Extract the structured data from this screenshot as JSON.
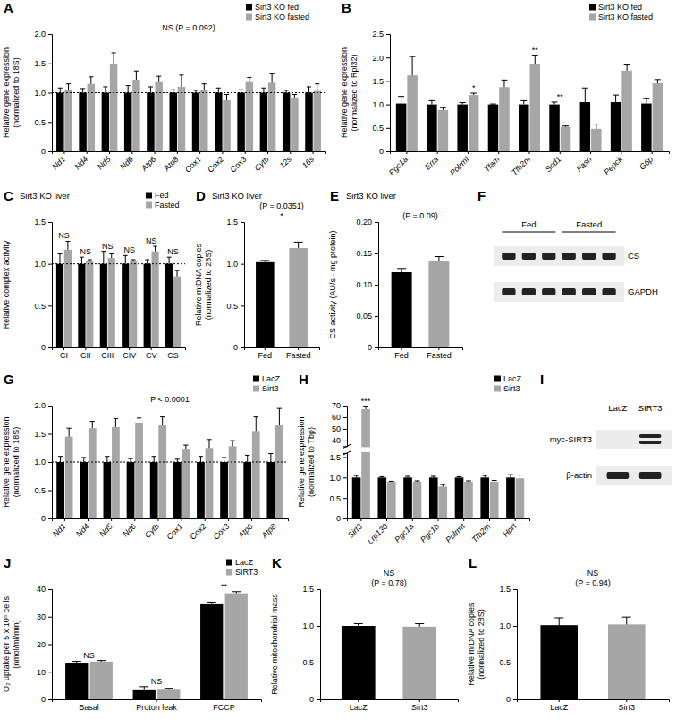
{
  "chart_data": [
    {
      "panel": "A",
      "type": "bar",
      "categories": [
        "Nd1",
        "Nd4",
        "Nd5",
        "Nd6",
        "Atp6",
        "Atp8",
        "Cox1",
        "Cox2",
        "Cox3",
        "Cytb",
        "12s",
        "16s"
      ],
      "series": [
        {
          "name": "Sirt3 KO fed",
          "color": "#000000",
          "values": [
            1,
            1,
            1,
            1,
            1,
            1,
            1,
            1,
            1,
            1,
            1,
            1
          ],
          "errors": [
            0.08,
            0.07,
            0.1,
            0.12,
            0.1,
            0.05,
            0.04,
            0.08,
            0.05,
            0.08,
            0.04,
            0.1
          ]
        },
        {
          "name": "Sirt3 KO fasted",
          "color": "#a6a6a6",
          "values": [
            1.05,
            1.15,
            1.48,
            1.22,
            1.18,
            1.1,
            1.05,
            0.87,
            1.18,
            1.17,
            0.92,
            1.03
          ],
          "errors": [
            0.1,
            0.12,
            0.2,
            0.15,
            0.1,
            0.2,
            0.1,
            0.1,
            0.08,
            0.15,
            0.05,
            0.12
          ]
        }
      ],
      "ylim": [
        0,
        2
      ],
      "yticks": [
        0,
        0.5,
        {
          "value": 1,
          "label": "1.0"
        },
        1.5,
        {
          "value": 2,
          "label": "2.0"
        }
      ],
      "ylabel": [
        "Relative gene expression",
        "(normalized to 18S)"
      ],
      "hline": 1,
      "legend": "top-right",
      "annotations": [
        {
          "text": "NS (P = 0.092)"
        }
      ]
    },
    {
      "panel": "B",
      "type": "bar",
      "categories": [
        "Pgc1a",
        "Erra",
        "Polrmt",
        "Tfam",
        "Tfb2m",
        "Scd1",
        "Fasn",
        "Pepck",
        "G6p"
      ],
      "series": [
        {
          "name": "Sirt3 KO fed",
          "color": "#000000",
          "values": [
            1.02,
            1.0,
            1.0,
            1.0,
            1.0,
            1.0,
            1.05,
            1.05,
            1.02
          ],
          "errors": [
            0.15,
            0.08,
            0.04,
            0.01,
            0.08,
            0.05,
            0.3,
            0.15,
            0.1
          ]
        },
        {
          "name": "Sirt3 KO fasted",
          "color": "#a6a6a6",
          "values": [
            1.62,
            0.88,
            1.2,
            1.37,
            1.85,
            0.52,
            0.48,
            1.72,
            1.45
          ],
          "errors": [
            0.4,
            0.05,
            0.04,
            0.15,
            0.2,
            0.02,
            0.1,
            0.12,
            0.08
          ]
        }
      ],
      "ylim": [
        0,
        2.5
      ],
      "yticks": [
        0,
        0.5,
        {
          "value": 1,
          "label": "1.0"
        },
        1.5,
        {
          "value": 2,
          "label": "2.0"
        },
        2.5
      ],
      "ylabel": [
        "Relative gene expression",
        "(normalized to Rpl32)"
      ],
      "legend": "top-right",
      "annotations": [
        {
          "text": "*",
          "category": 2,
          "series": 1
        },
        {
          "text": "**",
          "category": 4,
          "series": 1
        },
        {
          "text": "**",
          "category": 5
        }
      ]
    },
    {
      "panel": "C",
      "type": "bar",
      "title": "Sirt3 KO liver",
      "categories": [
        "CI",
        "CII",
        "CIII",
        "CIV",
        "CV",
        "CS"
      ],
      "series": [
        {
          "name": "Fed",
          "color": "#000000",
          "values": [
            1,
            1,
            1,
            1,
            1,
            1
          ],
          "errors": [
            0.12,
            0.08,
            0.15,
            0.1,
            0.05,
            0.08
          ]
        },
        {
          "name": "Fasted",
          "color": "#a6a6a6",
          "values": [
            1.17,
            1.03,
            1.07,
            1.03,
            1.15,
            0.85
          ],
          "errors": [
            0.1,
            0.02,
            0.05,
            0.02,
            0.06,
            0.07
          ]
        }
      ],
      "ylim": [
        0,
        1.5
      ],
      "yticks": [
        0,
        0.5,
        {
          "value": 1,
          "label": "1.0"
        },
        1.5
      ],
      "ylabel": [
        "Relative complex activity"
      ],
      "hline": 1,
      "legend": "top-right",
      "annotations": [
        {
          "text": "NS",
          "category": 0
        },
        {
          "text": "NS",
          "category": 1
        },
        {
          "text": "NS",
          "category": 2
        },
        {
          "text": "NS",
          "category": 3
        },
        {
          "text": "NS",
          "category": 4
        },
        {
          "text": "NS",
          "category": 5
        }
      ]
    },
    {
      "panel": "D",
      "type": "bar",
      "title": "Sirt3 KO liver",
      "categories": [
        "Fed",
        "Fasted"
      ],
      "values": [
        1.02,
        1.19
      ],
      "errors": [
        0.02,
        0.07
      ],
      "colors": [
        "#000000",
        "#a6a6a6"
      ],
      "ylim": [
        0,
        1.5
      ],
      "yticks": [
        0,
        0.5,
        {
          "value": 1,
          "label": "1.0"
        },
        1.5
      ],
      "ylabel": [
        "Relative mtDNA copies",
        "(normalized to 28S)"
      ],
      "annotations": [
        {
          "text": "(P = 0.0351)"
        },
        {
          "text": "*"
        }
      ]
    },
    {
      "panel": "E",
      "type": "bar",
      "title": "Sirt3 KO liver",
      "categories": [
        "Fed",
        "Fasted"
      ],
      "values": [
        0.12,
        0.138
      ],
      "errors": [
        0.006,
        0.007
      ],
      "colors": [
        "#000000",
        "#a6a6a6"
      ],
      "ylim": [
        0,
        0.2
      ],
      "yticks": [
        0,
        0.05,
        {
          "value": 0.1,
          "label": "0.10"
        },
        0.15,
        {
          "value": 0.2,
          "label": "0.20"
        }
      ],
      "ylabel": [
        "CS activity (AU/s · mg protein)"
      ],
      "annotations": [
        {
          "text": "(P = 0.09)"
        }
      ]
    },
    {
      "panel": "F",
      "type": "blot",
      "lane_groups": [
        {
          "label": "Fed",
          "lanes": 3
        },
        {
          "label": "Fasted",
          "lanes": 3
        }
      ],
      "rows": [
        {
          "label": "CS",
          "bands": [
            1,
            1,
            1,
            1,
            1,
            1
          ]
        },
        {
          "label": "GAPDH",
          "bands": [
            1,
            1,
            1,
            1,
            1,
            1
          ]
        }
      ]
    },
    {
      "panel": "G",
      "type": "bar",
      "categories": [
        "Nd1",
        "Nd4",
        "Nd5",
        "Nd6",
        "Cytb",
        "Cox1",
        "Cox2",
        "Cox3",
        "Atp6",
        "Atp8"
      ],
      "series": [
        {
          "name": "LacZ",
          "color": "#000000",
          "values": [
            1,
            1,
            1,
            1,
            1,
            1,
            1,
            1,
            1,
            1
          ],
          "errors": [
            0.1,
            0.08,
            0.1,
            0.06,
            0.1,
            0.05,
            0.1,
            0.08,
            0.12,
            0.15
          ]
        },
        {
          "name": "Sirt3",
          "color": "#a6a6a6",
          "values": [
            1.45,
            1.6,
            1.62,
            1.7,
            1.65,
            1.22,
            1.25,
            1.28,
            1.55,
            1.65
          ],
          "errors": [
            0.15,
            0.12,
            0.15,
            0.08,
            0.15,
            0.08,
            0.15,
            0.1,
            0.25,
            0.3
          ]
        }
      ],
      "ylim": [
        0,
        2
      ],
      "yticks": [
        0,
        0.5,
        {
          "value": 1,
          "label": "1.0"
        },
        1.5,
        {
          "value": 2,
          "label": "2.0"
        }
      ],
      "ylabel": [
        "Relative gene expression",
        "(normalized to 18S)"
      ],
      "hline": 1,
      "legend": "top-right",
      "annotations": [
        {
          "text": "P < 0.0001"
        }
      ]
    },
    {
      "panel": "H",
      "type": "bar",
      "categories": [
        "Sirt3",
        "Lrp130",
        "Pgc1a",
        "Pgc1b",
        "Polrmt",
        "Tfb2m",
        "Hprt"
      ],
      "series": [
        {
          "name": "LacZ",
          "color": "#000000",
          "values": [
            1,
            1,
            1,
            1,
            1,
            1,
            1
          ],
          "errors": [
            0.05,
            0.02,
            0.03,
            0.03,
            0.02,
            0.05,
            0.07
          ]
        },
        {
          "name": "Sirt3",
          "color": "#a6a6a6",
          "values": [
            67,
            0.9,
            0.9,
            0.78,
            0.9,
            0.9,
            0.98
          ],
          "errors": [
            2.5,
            0.01,
            0.02,
            0.05,
            0.02,
            0.03,
            0.08
          ]
        }
      ],
      "ylim": [
        0,
        70
      ],
      "axis_break": [
        1.6,
        35
      ],
      "yticks": [
        0,
        0.5,
        {
          "value": 1,
          "label": "1.0"
        },
        1.5,
        40,
        50,
        60,
        70
      ],
      "ylabel": [
        "Relative gene expression",
        "(normalized to Tbp)"
      ],
      "legend": "top-right",
      "annotations": [
        {
          "text": "***",
          "category": 0,
          "series": 1
        }
      ]
    },
    {
      "panel": "I",
      "type": "blot",
      "lane_groups": [
        {
          "label": "LacZ",
          "lanes": 1
        },
        {
          "label": "SIRT3",
          "lanes": 1
        }
      ],
      "rows": [
        {
          "label": "myc-SIRT3",
          "bands": [
            0,
            2
          ]
        },
        {
          "label": "β-actin",
          "bands": [
            1,
            1
          ]
        }
      ]
    },
    {
      "panel": "J",
      "type": "bar",
      "categories": [
        "Basal",
        "Proton leak",
        "FCCP"
      ],
      "series": [
        {
          "name": "LacZ",
          "color": "#000000",
          "values": [
            13,
            3.3,
            34.5
          ],
          "errors": [
            0.8,
            1.3,
            0.8
          ]
        },
        {
          "name": "SIRT3",
          "color": "#a6a6a6",
          "values": [
            13.7,
            3.5,
            38.5
          ],
          "errors": [
            0.4,
            0.5,
            0.6
          ]
        }
      ],
      "ylim": [
        0,
        40
      ],
      "yticks": [
        0,
        10,
        20,
        30,
        40
      ],
      "ylabel": [
        "O₂ uptake per 5 x 10⁶ cells",
        "(nmol/ml/min)"
      ],
      "legend": "top-right",
      "annotations": [
        {
          "text": "NS",
          "category": 0
        },
        {
          "text": "NS",
          "category": 1
        },
        {
          "text": "**",
          "category": 2
        }
      ]
    },
    {
      "panel": "K",
      "type": "bar",
      "categories": [
        "LacZ",
        "Sirt3"
      ],
      "values": [
        1.0,
        0.99
      ],
      "errors": [
        0.03,
        0.04
      ],
      "colors": [
        "#000000",
        "#a6a6a6"
      ],
      "ylim": [
        0,
        1.5
      ],
      "yticks": [
        0,
        0.5,
        {
          "value": 1,
          "label": "1.0"
        },
        1.5
      ],
      "ylabel": [
        "Relative mitochondrial mass"
      ],
      "annotations": [
        {
          "text": "NS"
        },
        {
          "text": "(P = 0.78)"
        }
      ]
    },
    {
      "panel": "L",
      "type": "bar",
      "categories": [
        "LacZ",
        "Sirt3"
      ],
      "values": [
        1.01,
        1.02
      ],
      "errors": [
        0.1,
        0.1
      ],
      "colors": [
        "#000000",
        "#a6a6a6"
      ],
      "ylim": [
        0,
        1.5
      ],
      "yticks": [
        0,
        0.5,
        {
          "value": 1,
          "label": "1.0"
        },
        1.5
      ],
      "ylabel": [
        "Relative mtDNA copies",
        "(normalized to 28S)"
      ],
      "annotations": [
        {
          "text": "NS"
        },
        {
          "text": "(P = 0.94)"
        }
      ]
    }
  ]
}
